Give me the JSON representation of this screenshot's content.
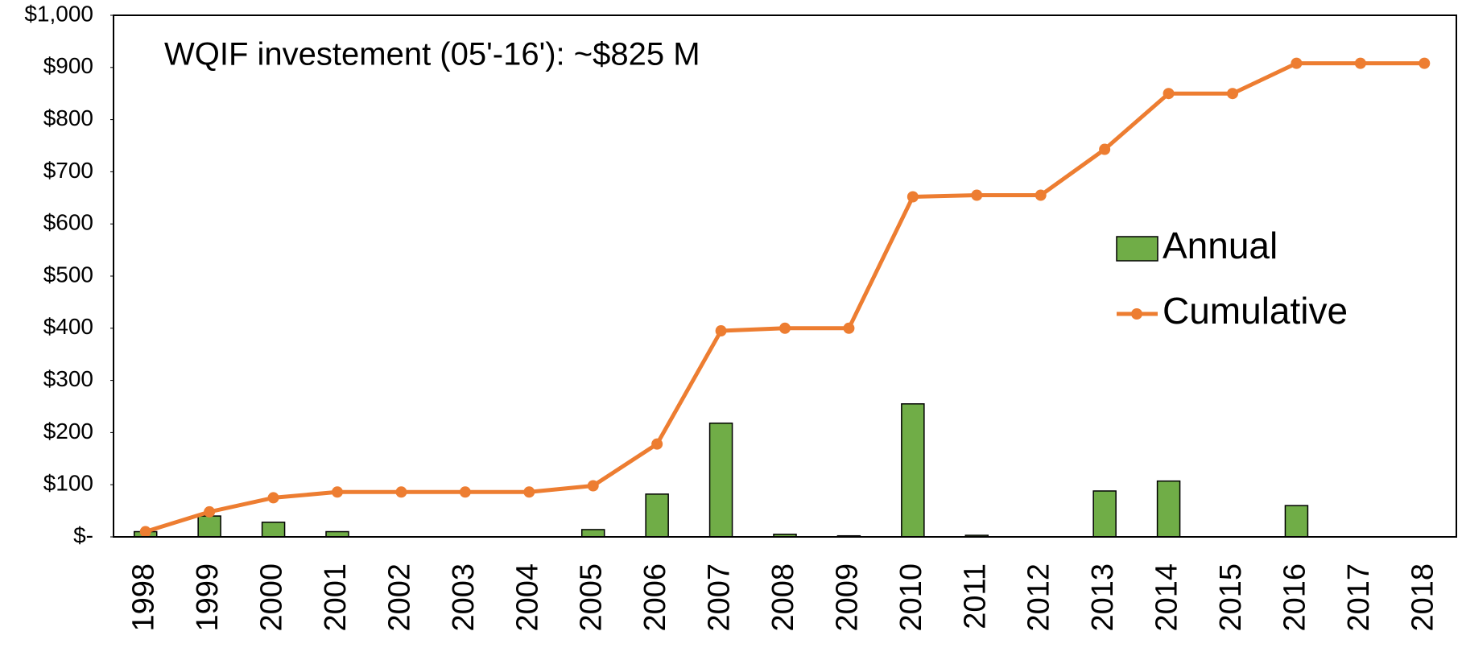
{
  "chart_data": {
    "type": "bar_line",
    "annotation": "WQIF investement (05'-16'): ~$825 M",
    "categories": [
      "1998",
      "1999",
      "2000",
      "2001",
      "2002",
      "2003",
      "2004",
      "2005",
      "2006",
      "2007",
      "2008",
      "2009",
      "2010",
      "2011",
      "2012",
      "2013",
      "2014",
      "2015",
      "2016",
      "2017",
      "2018"
    ],
    "series": [
      {
        "name": "Annual",
        "type": "bar",
        "color": "#70ad47",
        "values": [
          10,
          40,
          28,
          10,
          0,
          0,
          0,
          14,
          82,
          218,
          5,
          2,
          255,
          3,
          0,
          88,
          107,
          0,
          60,
          0,
          0
        ]
      },
      {
        "name": "Cumulative",
        "type": "line",
        "color": "#ed7d31",
        "values": [
          10,
          48,
          75,
          86,
          86,
          86,
          86,
          98,
          178,
          395,
          400,
          400,
          652,
          655,
          655,
          743,
          850,
          850,
          908,
          908,
          908
        ]
      }
    ],
    "ylim": [
      0,
      1000
    ],
    "yticks": [
      {
        "value": 0,
        "label": "$-"
      },
      {
        "value": 100,
        "label": "$100"
      },
      {
        "value": 200,
        "label": "$200"
      },
      {
        "value": 300,
        "label": "$300"
      },
      {
        "value": 400,
        "label": "$400"
      },
      {
        "value": 500,
        "label": "$500"
      },
      {
        "value": 600,
        "label": "$600"
      },
      {
        "value": 700,
        "label": "$700"
      },
      {
        "value": 800,
        "label": "$800"
      },
      {
        "value": 900,
        "label": "$900"
      },
      {
        "value": 1000,
        "label": "$1,000"
      }
    ],
    "legend": "right"
  }
}
